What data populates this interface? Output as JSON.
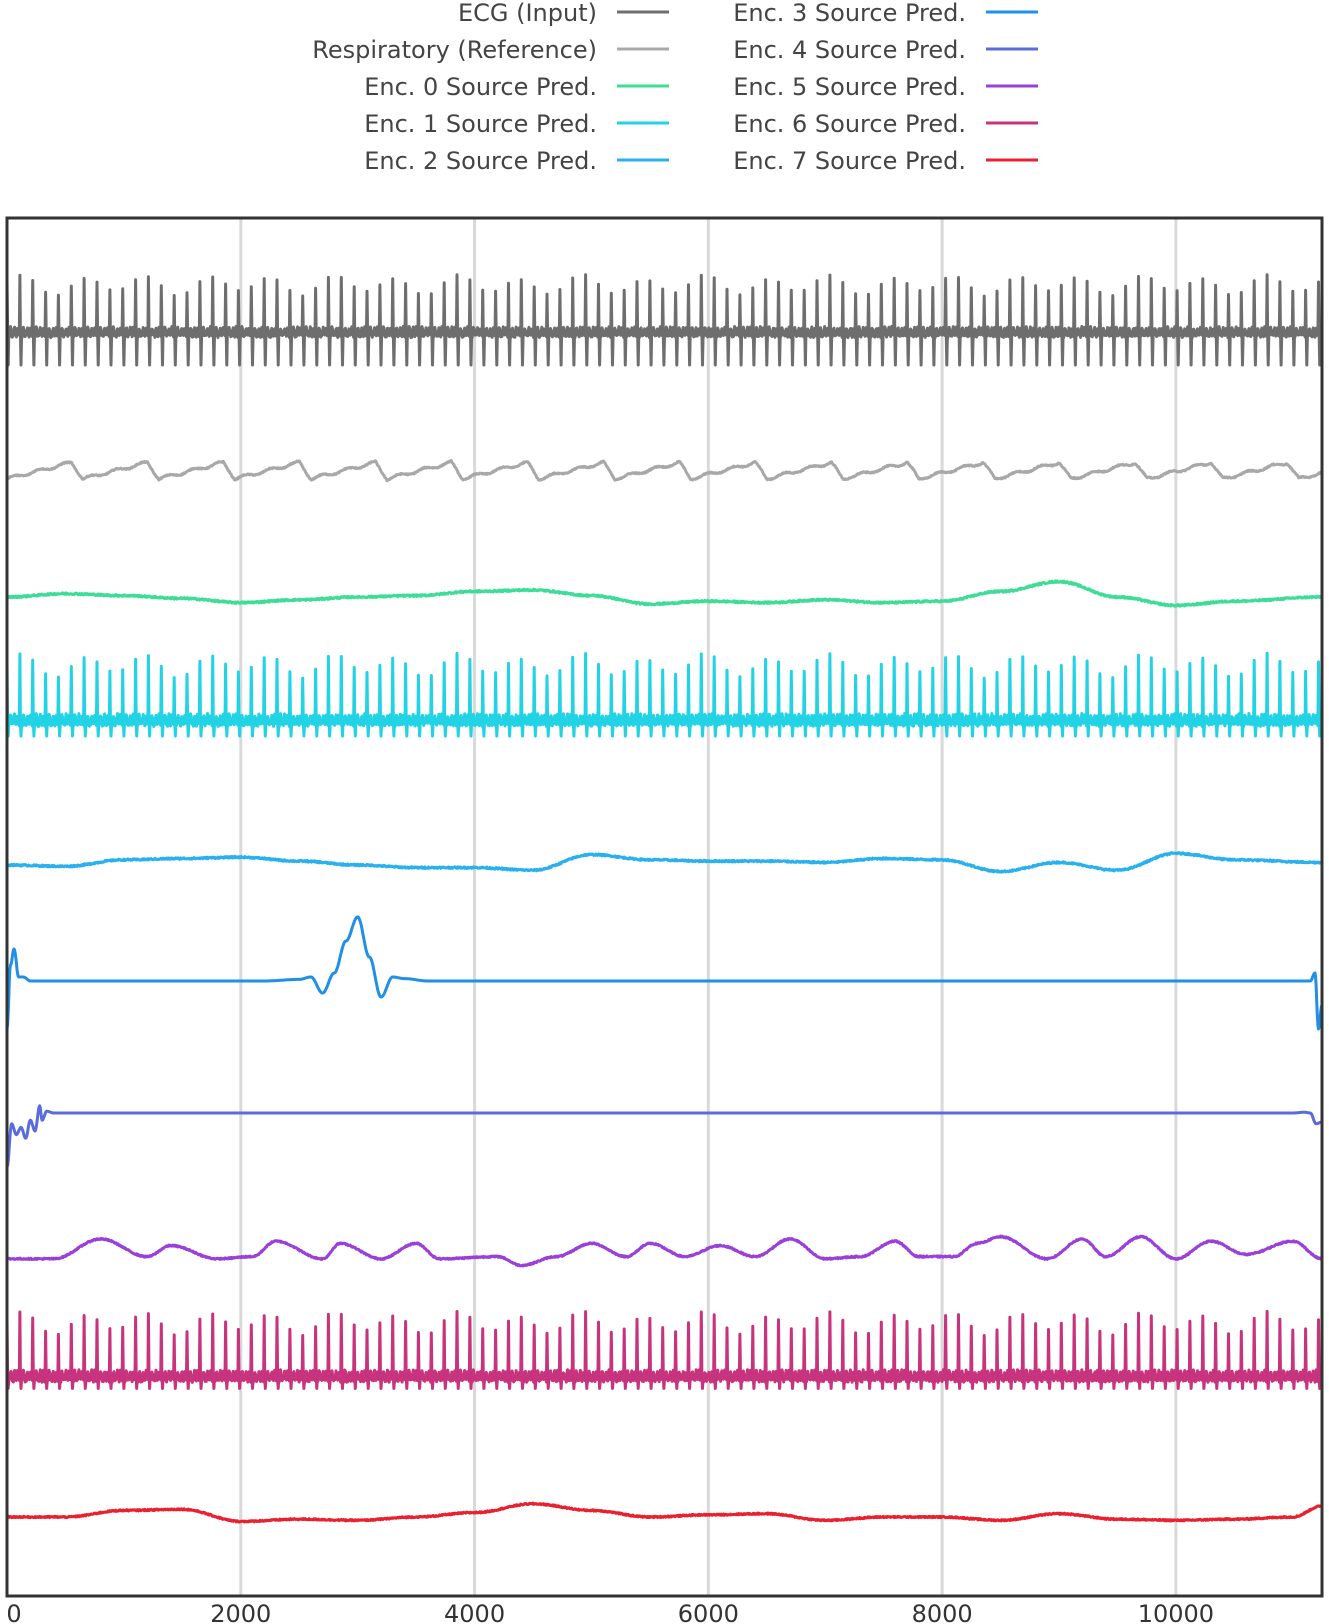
{
  "chart_data": {
    "type": "line",
    "title": "",
    "xlabel": "",
    "ylabel": "",
    "xlim": [
      0,
      11250
    ],
    "xticks": [
      0,
      2000,
      4000,
      6000,
      8000,
      10000
    ],
    "x_tick_labels": [
      "0",
      "2000",
      "4000",
      "6000",
      "8000",
      "10000"
    ],
    "grid": "vertical lines at x ticks",
    "legend_position": "top-center, above plot, two columns",
    "y_axis": "hidden; each series vertically offset (stacked)",
    "series": [
      {
        "name": "ECG (Input)",
        "color": "#6e6e6e",
        "kind": "spikes",
        "beat_period": 110,
        "baseline": 0.0,
        "peak": 1.0,
        "trough": -0.6
      },
      {
        "name": "Respiratory (Reference)",
        "color": "#a8a8a8",
        "kind": "respiration",
        "period": 650,
        "amplitude": 0.5
      },
      {
        "name": "Enc. 0 Source Pred.",
        "color": "#3ddc97",
        "kind": "trend",
        "x": [
          0,
          500,
          1000,
          1500,
          2000,
          2500,
          3000,
          3500,
          4000,
          4500,
          5000,
          5500,
          6000,
          6500,
          7000,
          7500,
          8000,
          8500,
          9000,
          9500,
          10000,
          10500,
          11250
        ],
        "y": [
          0.0,
          0.12,
          0.05,
          -0.05,
          -0.2,
          -0.1,
          0.0,
          0.05,
          0.2,
          0.25,
          0.05,
          -0.25,
          -0.15,
          -0.2,
          -0.1,
          -0.2,
          -0.15,
          0.2,
          0.55,
          0.0,
          -0.3,
          -0.15,
          0.0
        ]
      },
      {
        "name": "Enc. 1 Source Pred.",
        "color": "#22d3e6",
        "kind": "spikes",
        "beat_period": 110,
        "baseline": 0.0,
        "peak": 1.0,
        "trough": -0.25
      },
      {
        "name": "Enc. 2 Source Pred.",
        "color": "#29b0ee",
        "kind": "trend",
        "x": [
          0,
          500,
          1000,
          1500,
          2000,
          2500,
          3000,
          3500,
          4000,
          4500,
          5000,
          5500,
          6000,
          6500,
          7000,
          7500,
          8000,
          8500,
          9000,
          9500,
          10000,
          10500,
          11250
        ],
        "y": [
          0.0,
          -0.05,
          0.2,
          0.25,
          0.3,
          0.15,
          0.0,
          -0.1,
          -0.1,
          -0.2,
          0.4,
          0.2,
          0.15,
          0.15,
          0.1,
          0.25,
          0.2,
          -0.25,
          0.1,
          -0.2,
          0.45,
          0.2,
          0.1
        ]
      },
      {
        "name": "Enc. 3 Source Pred.",
        "color": "#1f8fe8",
        "kind": "bump",
        "x": [
          0,
          30,
          60,
          100,
          140,
          200,
          300,
          2200,
          2500,
          2600,
          2700,
          2800,
          2900,
          3000,
          3100,
          3200,
          3300,
          3400,
          3600,
          11000,
          11150,
          11190,
          11220,
          11250
        ],
        "y": [
          -0.6,
          0.2,
          0.4,
          0.05,
          0.05,
          0.0,
          0.0,
          0.0,
          0.02,
          0.05,
          -0.15,
          0.1,
          0.5,
          0.8,
          0.3,
          -0.2,
          0.05,
          0.03,
          0.0,
          0.0,
          0.0,
          0.1,
          -0.6,
          -0.3
        ]
      },
      {
        "name": "Enc. 4 Source Pred.",
        "color": "#5b6bdc",
        "kind": "bump",
        "x": [
          0,
          40,
          80,
          120,
          160,
          200,
          240,
          280,
          300,
          340,
          400,
          500,
          11000,
          11100,
          11150,
          11200,
          11250
        ],
        "y": [
          -1.5,
          -0.3,
          -0.6,
          -0.4,
          -0.7,
          -0.2,
          -0.5,
          0.2,
          -0.2,
          0.05,
          0.0,
          0.0,
          0.0,
          0.02,
          0.0,
          -0.3,
          -0.25
        ]
      },
      {
        "name": "Enc. 5 Source Pred.",
        "color": "#9a3fd8",
        "kind": "bumps",
        "x": [
          0,
          400,
          800,
          1200,
          1400,
          1800,
          2100,
          2300,
          2700,
          2850,
          3200,
          3500,
          3700,
          4200,
          4400,
          4700,
          5000,
          5300,
          5500,
          5800,
          6100,
          6400,
          6700,
          7000,
          7300,
          7600,
          7800,
          8100,
          8300,
          8500,
          8900,
          9200,
          9400,
          9700,
          10000,
          10300,
          10600,
          11000,
          11250
        ],
        "y": [
          -0.4,
          -0.4,
          0.5,
          -0.3,
          0.2,
          -0.4,
          -0.3,
          0.4,
          -0.4,
          0.3,
          -0.4,
          0.3,
          -0.4,
          -0.3,
          -0.7,
          -0.3,
          0.3,
          -0.3,
          0.3,
          -0.3,
          0.2,
          -0.3,
          0.5,
          -0.4,
          -0.3,
          0.4,
          -0.3,
          -0.3,
          0.3,
          0.6,
          -0.4,
          0.5,
          -0.3,
          0.6,
          -0.4,
          0.4,
          -0.2,
          0.4,
          -0.4
        ]
      },
      {
        "name": "Enc. 6 Source Pred.",
        "color": "#c8337d",
        "kind": "spikes",
        "beat_period": 110,
        "baseline": 0.0,
        "peak": 1.0,
        "trough": -0.2
      },
      {
        "name": "Enc. 7 Source Pred.",
        "color": "#e8202f",
        "kind": "trend",
        "x": [
          0,
          500,
          1000,
          1500,
          2000,
          2500,
          3000,
          3500,
          4000,
          4500,
          5000,
          5500,
          6000,
          6500,
          7000,
          7500,
          8000,
          8500,
          9000,
          9500,
          10000,
          10500,
          11000,
          11250
        ],
        "y": [
          0.0,
          0.0,
          0.3,
          0.35,
          -0.2,
          -0.1,
          -0.15,
          0.0,
          0.2,
          0.6,
          0.3,
          0.0,
          0.1,
          0.15,
          -0.15,
          0.0,
          0.0,
          -0.15,
          0.15,
          -0.1,
          -0.15,
          -0.1,
          0.0,
          0.5
        ]
      }
    ]
  }
}
